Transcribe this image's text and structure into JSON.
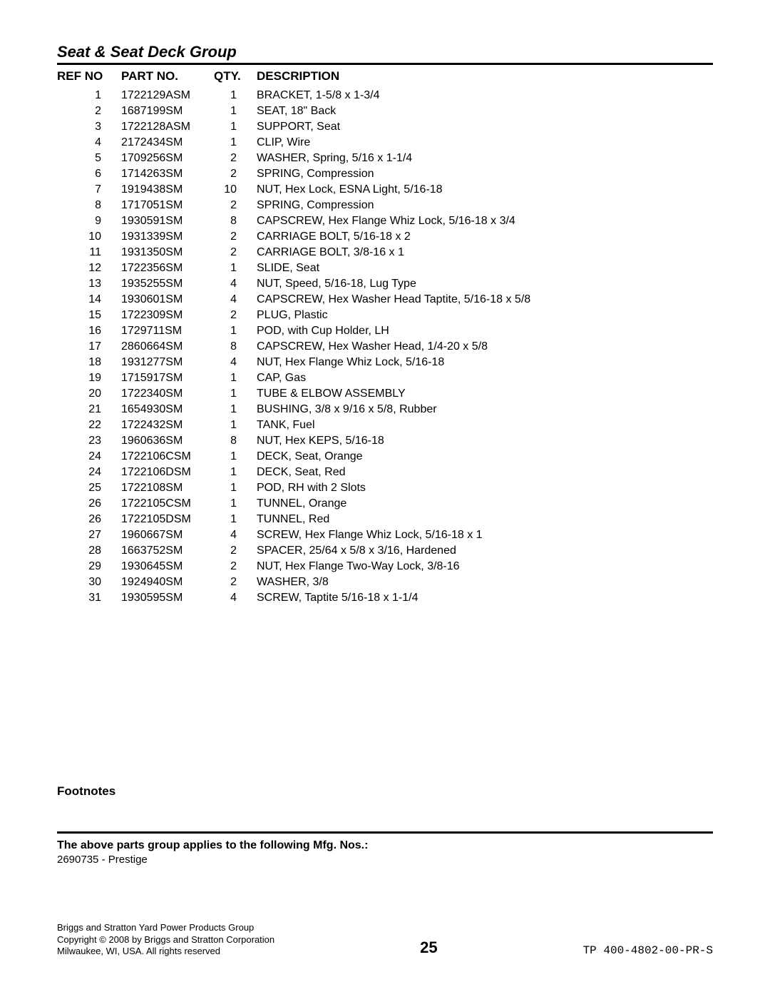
{
  "title": "Seat & Seat Deck Group",
  "columns": {
    "ref": "REF NO",
    "part": "PART NO.",
    "qty": "QTY.",
    "desc": "DESCRIPTION"
  },
  "rows": [
    {
      "ref": "1",
      "part": "1722129ASM",
      "qty": "1",
      "desc": "BRACKET, 1-5/8 x 1-3/4"
    },
    {
      "ref": "2",
      "part": "1687199SM",
      "qty": "1",
      "desc": "SEAT, 18\" Back"
    },
    {
      "ref": "3",
      "part": "1722128ASM",
      "qty": "1",
      "desc": "SUPPORT, Seat"
    },
    {
      "ref": "4",
      "part": "2172434SM",
      "qty": "1",
      "desc": "CLIP, Wire"
    },
    {
      "ref": "5",
      "part": "1709256SM",
      "qty": "2",
      "desc": "WASHER, Spring, 5/16 x 1-1/4"
    },
    {
      "ref": "6",
      "part": "1714263SM",
      "qty": "2",
      "desc": "SPRING, Compression"
    },
    {
      "ref": "7",
      "part": "1919438SM",
      "qty": "10",
      "desc": "NUT, Hex Lock, ESNA Light, 5/16-18"
    },
    {
      "ref": "8",
      "part": "1717051SM",
      "qty": "2",
      "desc": "SPRING, Compression"
    },
    {
      "ref": "9",
      "part": "1930591SM",
      "qty": "8",
      "desc": "CAPSCREW, Hex Flange Whiz Lock, 5/16-18 x 3/4"
    },
    {
      "ref": "10",
      "part": "1931339SM",
      "qty": "2",
      "desc": "CARRIAGE BOLT, 5/16-18 x 2"
    },
    {
      "ref": "11",
      "part": "1931350SM",
      "qty": "2",
      "desc": "CARRIAGE BOLT, 3/8-16 x 1"
    },
    {
      "ref": "12",
      "part": "1722356SM",
      "qty": "1",
      "desc": "SLIDE, Seat"
    },
    {
      "ref": "13",
      "part": "1935255SM",
      "qty": "4",
      "desc": "NUT, Speed, 5/16-18, Lug Type"
    },
    {
      "ref": "14",
      "part": "1930601SM",
      "qty": "4",
      "desc": "CAPSCREW, Hex Washer Head Taptite, 5/16-18 x 5/8"
    },
    {
      "ref": "15",
      "part": "1722309SM",
      "qty": "2",
      "desc": "PLUG, Plastic"
    },
    {
      "ref": "16",
      "part": "1729711SM",
      "qty": "1",
      "desc": "POD, with Cup Holder, LH"
    },
    {
      "ref": "17",
      "part": "2860664SM",
      "qty": "8",
      "desc": "CAPSCREW, Hex Washer Head, 1/4-20 x 5/8"
    },
    {
      "ref": "18",
      "part": "1931277SM",
      "qty": "4",
      "desc": "NUT, Hex Flange Whiz Lock, 5/16-18"
    },
    {
      "ref": "19",
      "part": "1715917SM",
      "qty": "1",
      "desc": "CAP, Gas"
    },
    {
      "ref": "20",
      "part": "1722340SM",
      "qty": "1",
      "desc": "TUBE & ELBOW ASSEMBLY"
    },
    {
      "ref": "21",
      "part": "1654930SM",
      "qty": "1",
      "desc": "BUSHING, 3/8 x 9/16 x 5/8, Rubber"
    },
    {
      "ref": "22",
      "part": "1722432SM",
      "qty": "1",
      "desc": "TANK, Fuel"
    },
    {
      "ref": "23",
      "part": "1960636SM",
      "qty": "8",
      "desc": "NUT, Hex KEPS, 5/16-18"
    },
    {
      "ref": "24",
      "part": "1722106CSM",
      "qty": "1",
      "desc": "DECK, Seat, Orange"
    },
    {
      "ref": "24",
      "part": "1722106DSM",
      "qty": "1",
      "desc": "DECK, Seat, Red"
    },
    {
      "ref": "25",
      "part": "1722108SM",
      "qty": "1",
      "desc": "POD, RH with 2 Slots"
    },
    {
      "ref": "26",
      "part": "1722105CSM",
      "qty": "1",
      "desc": "TUNNEL, Orange"
    },
    {
      "ref": "26",
      "part": "1722105DSM",
      "qty": "1",
      "desc": "TUNNEL, Red"
    },
    {
      "ref": "27",
      "part": "1960667SM",
      "qty": "4",
      "desc": "SCREW, Hex Flange Whiz Lock, 5/16-18 x 1"
    },
    {
      "ref": "28",
      "part": "1663752SM",
      "qty": "2",
      "desc": "SPACER, 25/64 x 5/8 x 3/16, Hardened"
    },
    {
      "ref": "29",
      "part": "1930645SM",
      "qty": "2",
      "desc": "NUT, Hex Flange Two-Way Lock, 3/8-16"
    },
    {
      "ref": "30",
      "part": "1924940SM",
      "qty": "2",
      "desc": "WASHER, 3/8"
    },
    {
      "ref": "31",
      "part": "1930595SM",
      "qty": "4",
      "desc": "SCREW, Taptite 5/16-18 x 1-1/4"
    }
  ],
  "footnotes_label": "Footnotes",
  "applies_label": "The above parts group applies to the following Mfg. Nos.:",
  "mfg_nos": "2690735 - Prestige",
  "footer": {
    "line1": "Briggs and Stratton Yard Power Products Group",
    "line2": "Copyright © 2008 by Briggs and Stratton Corporation",
    "line3": "Milwaukee, WI, USA. All rights reserved",
    "page": "25",
    "doc_no": "TP 400-4802-00-PR-S"
  }
}
